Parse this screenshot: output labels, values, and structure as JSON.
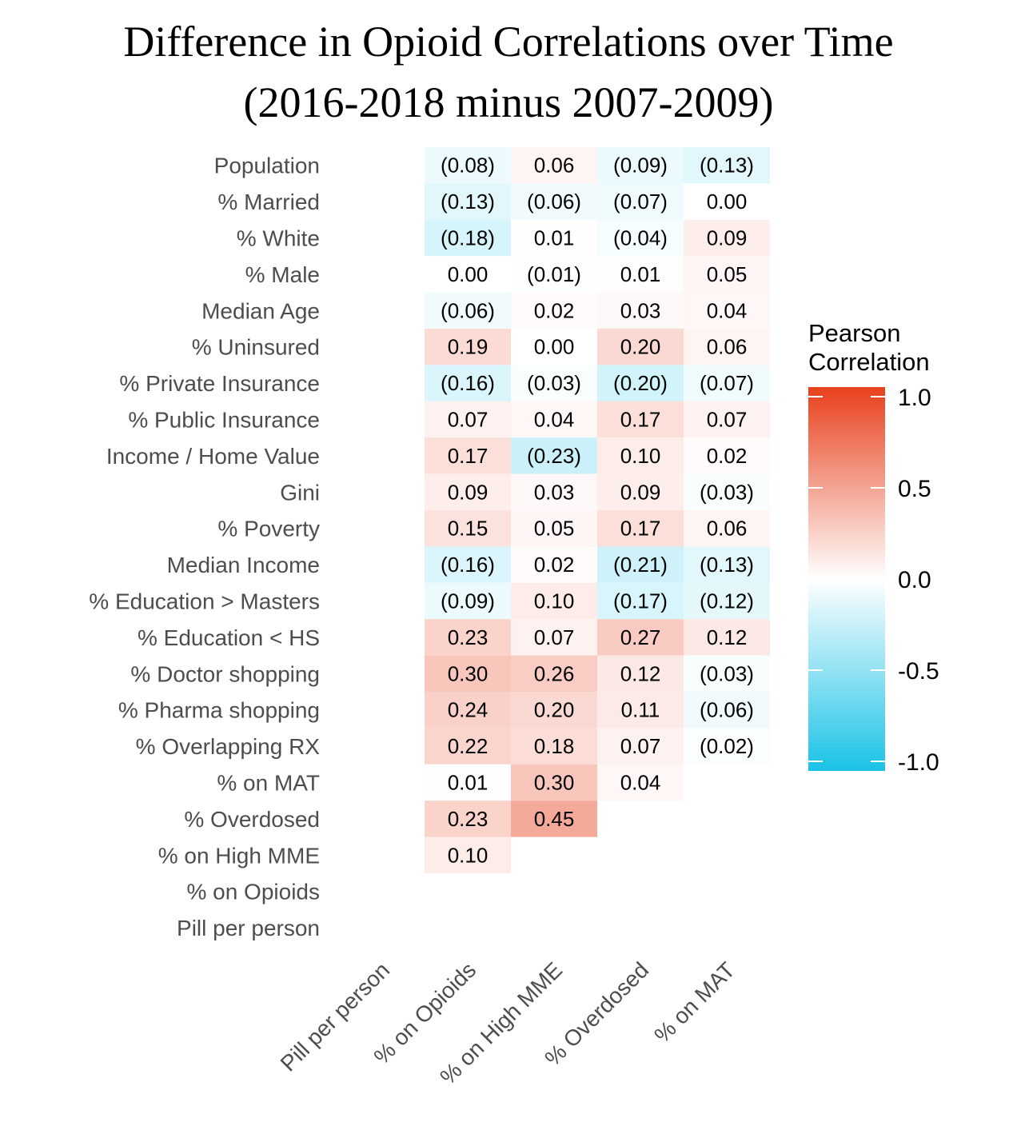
{
  "chart_data": {
    "type": "heatmap",
    "title": "Difference in Opioid Correlations over Time",
    "subtitle": "(2016-2018 minus 2007-2009)",
    "rows": [
      "Population",
      "% Married",
      "% White",
      "% Male",
      "Median Age",
      "% Uninsured",
      "% Private Insurance",
      "% Public Insurance",
      "Income / Home Value",
      "Gini",
      "% Poverty",
      "Median Income",
      "% Education > Masters",
      "% Education < HS",
      "% Doctor shopping",
      "% Pharma shopping",
      "% Overlapping RX",
      "% on MAT",
      "% Overdosed",
      "% on High MME",
      "% on Opioids",
      "Pill per person"
    ],
    "columns": [
      "Pill per person",
      "% on Opioids",
      "% on High MME",
      "% Overdosed",
      "% on MAT"
    ],
    "values": [
      [
        null,
        -0.08,
        0.06,
        -0.09,
        -0.13
      ],
      [
        null,
        -0.13,
        -0.06,
        -0.07,
        0.0
      ],
      [
        null,
        -0.18,
        0.01,
        -0.04,
        0.09
      ],
      [
        null,
        0.0,
        -0.01,
        0.01,
        0.05
      ],
      [
        null,
        -0.06,
        0.02,
        0.03,
        0.04
      ],
      [
        null,
        0.19,
        0.0,
        0.2,
        0.06
      ],
      [
        null,
        -0.16,
        -0.03,
        -0.2,
        -0.07
      ],
      [
        null,
        0.07,
        0.04,
        0.17,
        0.07
      ],
      [
        null,
        0.17,
        -0.23,
        0.1,
        0.02
      ],
      [
        null,
        0.09,
        0.03,
        0.09,
        -0.03
      ],
      [
        null,
        0.15,
        0.05,
        0.17,
        0.06
      ],
      [
        null,
        -0.16,
        0.02,
        -0.21,
        -0.13
      ],
      [
        null,
        -0.09,
        0.1,
        -0.17,
        -0.12
      ],
      [
        null,
        0.23,
        0.07,
        0.27,
        0.12
      ],
      [
        null,
        0.3,
        0.26,
        0.12,
        -0.03
      ],
      [
        null,
        0.24,
        0.2,
        0.11,
        -0.06
      ],
      [
        null,
        0.22,
        0.18,
        0.07,
        -0.02
      ],
      [
        null,
        0.01,
        0.3,
        0.04,
        null
      ],
      [
        null,
        0.23,
        0.45,
        null,
        null
      ],
      [
        null,
        0.1,
        null,
        null,
        null
      ],
      [
        null,
        null,
        null,
        null,
        null
      ],
      [
        null,
        null,
        null,
        null,
        null
      ]
    ],
    "legend": {
      "title": [
        "Pearson",
        "Correlation"
      ],
      "ticks": [
        "1.0",
        "0.5",
        "0.0",
        "-0.5",
        "-1.0"
      ],
      "range": [
        -1.0,
        1.0
      ],
      "placement": "right"
    },
    "colors": {
      "high": "#e8401c",
      "mid": "#ffffff",
      "low": "#1ac2e6"
    },
    "negative_format": "parentheses"
  }
}
